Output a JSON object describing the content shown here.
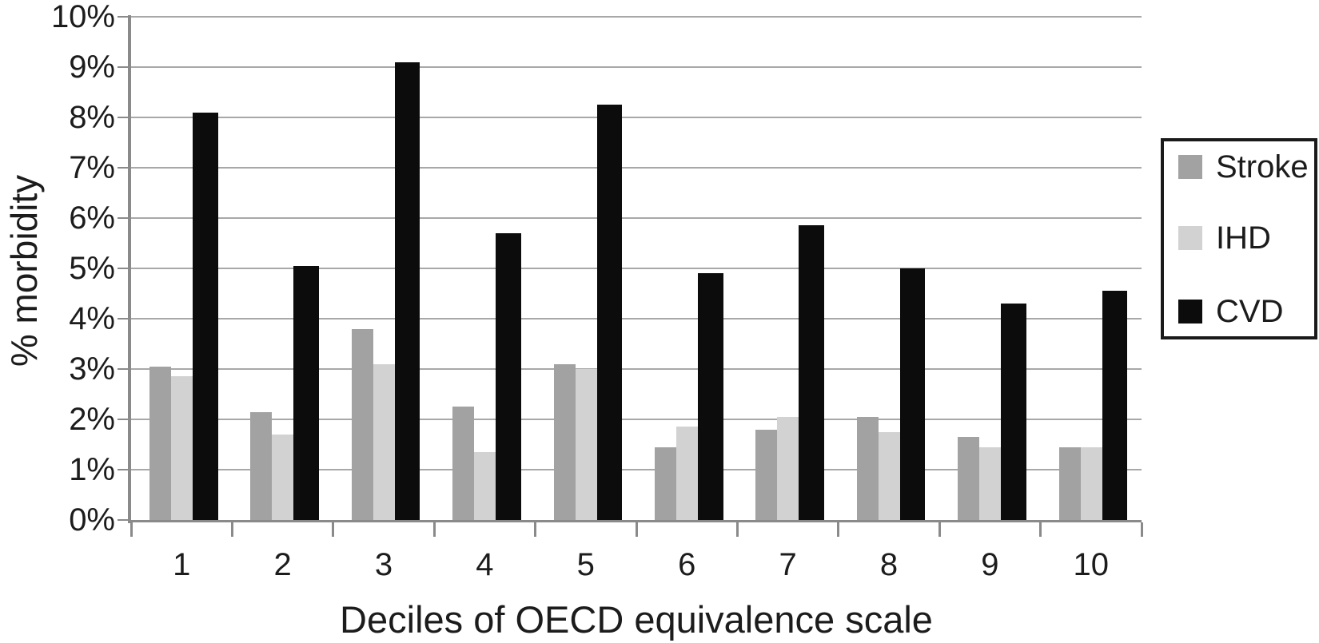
{
  "chart_data": {
    "type": "bar",
    "title": "",
    "xlabel": "Deciles of OECD equivalence scale",
    "ylabel": "% morbidity",
    "categories": [
      "1",
      "2",
      "3",
      "4",
      "5",
      "6",
      "7",
      "8",
      "9",
      "10"
    ],
    "series": [
      {
        "name": "Stroke",
        "color": "#a2a2a2",
        "values": [
          3.05,
          2.15,
          3.8,
          2.25,
          3.1,
          1.45,
          1.8,
          2.05,
          1.65,
          1.45
        ]
      },
      {
        "name": "IHD",
        "color": "#d2d2d2",
        "values": [
          2.85,
          1.7,
          3.1,
          1.35,
          3.0,
          1.85,
          2.05,
          1.75,
          1.45,
          1.45
        ]
      },
      {
        "name": "CVD",
        "color": "#0c0c0c",
        "values": [
          8.1,
          5.05,
          9.1,
          5.7,
          8.25,
          4.9,
          5.85,
          5.0,
          4.3,
          4.55
        ]
      }
    ],
    "y_ticks": [
      "0%",
      "1%",
      "2%",
      "3%",
      "4%",
      "5%",
      "6%",
      "7%",
      "8%",
      "9%",
      "10%"
    ],
    "ylim": [
      0,
      10
    ],
    "grid": true,
    "legend_position": "right",
    "axis_color": "#8a8a8a",
    "gridline_color": "#a8a8a8",
    "text_color": "#1c1c1c",
    "background": "#ffffff"
  }
}
